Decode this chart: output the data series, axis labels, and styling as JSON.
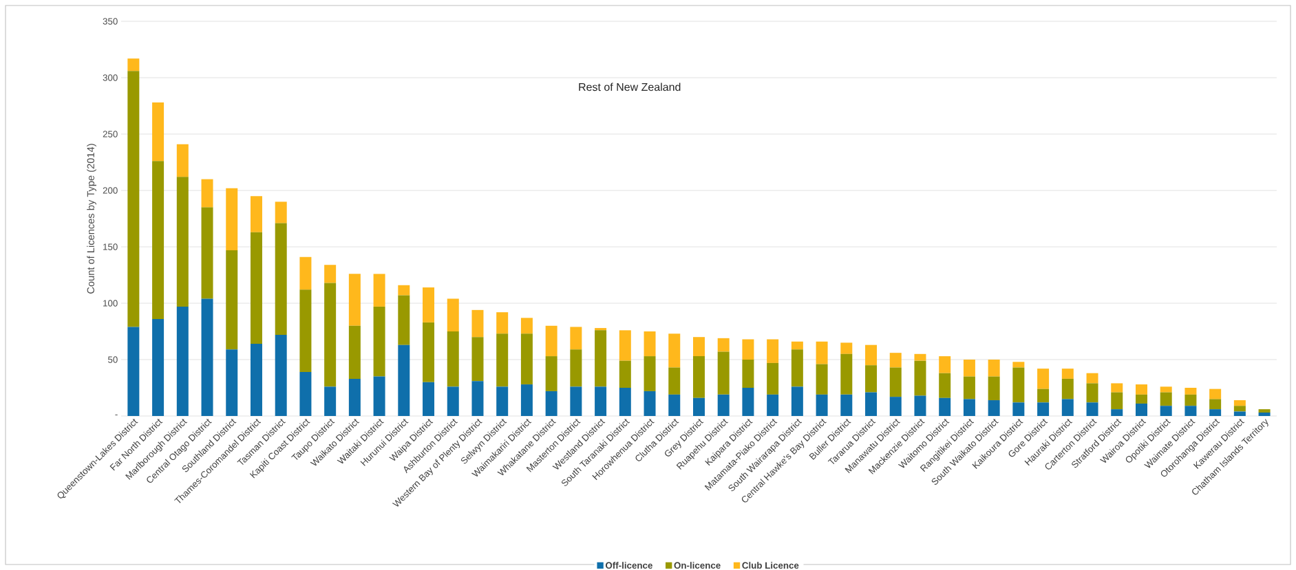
{
  "chart_data": {
    "type": "bar",
    "stacked": true,
    "title": "Rest of New Zealand",
    "ylabel": "Count of Licences by Type (2014)",
    "categories": [
      "Queenstown-Lakes District",
      "Far North District",
      "Marlborough District",
      "Central Otago District",
      "Southland District",
      "Thames-Coromandel District",
      "Tasman District",
      "Kapiti Coast District",
      "Taupo District",
      "Waikato District",
      "Waitaki District",
      "Hurunui District",
      "Waipa District",
      "Ashburton District",
      "Western Bay of Plenty District",
      "Selwyn District",
      "Waimakariri District",
      "Whakatane District",
      "Masterton District",
      "Westland District",
      "South Taranaki District",
      "Horowhenua District",
      "Clutha District",
      "Grey District",
      "Ruapehu District",
      "Kaipara District",
      "Matamata-Piako District",
      "South Wairarapa District",
      "Central Hawke's Bay District",
      "Buller District",
      "Tararua District",
      "Manawatu District",
      "Mackenzie District",
      "Waitomo District",
      "Rangitikei District",
      "South Waikato District",
      "Kaikoura District",
      "Gore District",
      "Hauraki District",
      "Carterton District",
      "Stratford District",
      "Wairoa District",
      "Opotiki District",
      "Waimate District",
      "Otorohanga District",
      "Kawerau District",
      "Chatham Islands Territory"
    ],
    "series": [
      {
        "name": "Off-licence",
        "color": "#0f6fab",
        "values": [
          79,
          86,
          97,
          104,
          59,
          64,
          72,
          39,
          26,
          33,
          35,
          63,
          30,
          26,
          31,
          26,
          28,
          22,
          26,
          26,
          25,
          22,
          19,
          16,
          19,
          25,
          19,
          26,
          19,
          19,
          21,
          17,
          18,
          16,
          15,
          14,
          12,
          12,
          15,
          12,
          6,
          11,
          9,
          9,
          6,
          4,
          3
        ]
      },
      {
        "name": "On-licence",
        "color": "#999900",
        "values": [
          227,
          140,
          115,
          81,
          88,
          99,
          99,
          73,
          92,
          47,
          62,
          44,
          53,
          49,
          39,
          47,
          45,
          31,
          33,
          50,
          24,
          31,
          24,
          37,
          38,
          25,
          28,
          33,
          27,
          36,
          24,
          26,
          31,
          22,
          20,
          21,
          31,
          12,
          18,
          17,
          15,
          8,
          12,
          10,
          9,
          5,
          3
        ]
      },
      {
        "name": "Club Licence",
        "color": "#ffb81c",
        "values": [
          11,
          52,
          29,
          25,
          55,
          32,
          19,
          29,
          16,
          46,
          29,
          9,
          31,
          29,
          24,
          19,
          14,
          27,
          20,
          2,
          27,
          22,
          30,
          17,
          12,
          18,
          21,
          7,
          20,
          10,
          18,
          13,
          6,
          15,
          15,
          15,
          5,
          18,
          9,
          9,
          8,
          9,
          5,
          6,
          9,
          5,
          0
        ]
      }
    ],
    "ylim": [
      0,
      350
    ],
    "yticks": [
      {
        "value": 0,
        "label": "-"
      },
      50,
      100,
      150,
      200,
      250,
      300,
      350
    ],
    "grid": "y",
    "legend": "bottom"
  }
}
